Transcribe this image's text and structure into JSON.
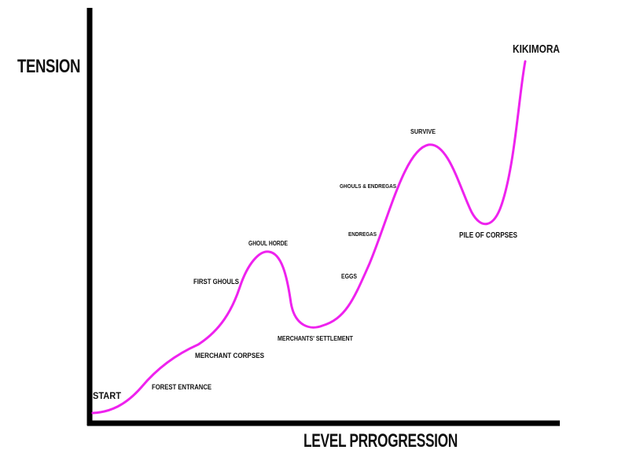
{
  "axes": {
    "y_label": "TENSION",
    "x_label": "LEVEL PRROGRESSION"
  },
  "events": [
    {
      "label": "START"
    },
    {
      "label": "FOREST ENTRANCE"
    },
    {
      "label": "MERCHANT CORPSES"
    },
    {
      "label": "FIRST GHOULS"
    },
    {
      "label": "GHOUL HORDE"
    },
    {
      "label": "MERCHANTS' SETTLEMENT"
    },
    {
      "label": "EGGS"
    },
    {
      "label": "ENDREGAS"
    },
    {
      "label": "GHOULS & ENDREGAS"
    },
    {
      "label": "SURVIVE"
    },
    {
      "label": "PILE OF CORPSES"
    },
    {
      "label": "KIKIMORA"
    }
  ]
}
